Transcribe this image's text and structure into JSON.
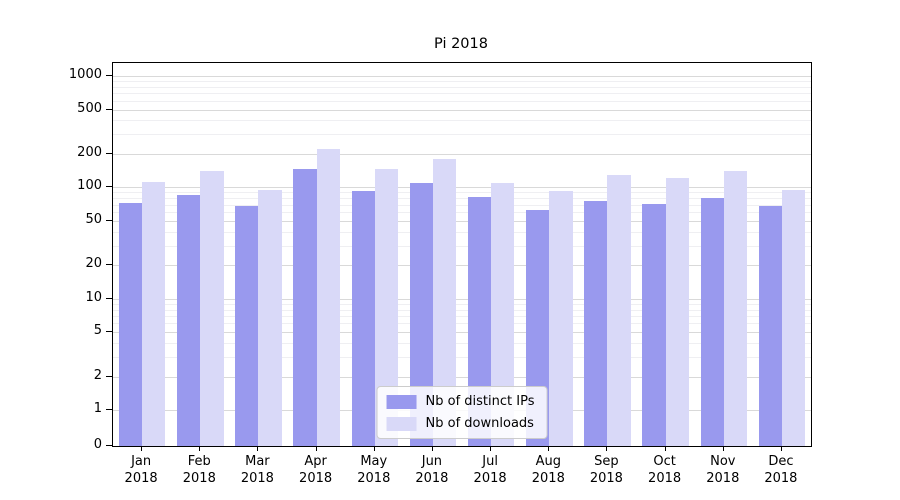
{
  "chart_data": {
    "type": "bar",
    "title": "Pi 2018",
    "categories": [
      "Jan",
      "Feb",
      "Mar",
      "Apr",
      "May",
      "Jun",
      "Jul",
      "Aug",
      "Sep",
      "Oct",
      "Nov",
      "Dec"
    ],
    "x_year": "2018",
    "series": [
      {
        "name": "Nb of distinct IPs",
        "color": "#9999ee",
        "values": [
          72,
          85,
          68,
          145,
          92,
          110,
          82,
          62,
          75,
          71,
          80,
          68
        ]
      },
      {
        "name": "Nb of downloads",
        "color": "#d9d9f8",
        "values": [
          112,
          140,
          95,
          220,
          145,
          180,
          110,
          92,
          130,
          122,
          140,
          95
        ]
      }
    ],
    "yscale": "symlog",
    "ylim": [
      0,
      1000
    ],
    "yticks": [
      1000,
      500,
      200,
      100,
      50,
      20,
      10,
      5,
      2,
      1,
      0
    ],
    "grid": true,
    "legend_position": "lower center",
    "colors": {
      "major_grid": "#d9d9d9",
      "minor_grid": "#efeff2",
      "spine": "#000000",
      "background": "#ffffff"
    }
  }
}
